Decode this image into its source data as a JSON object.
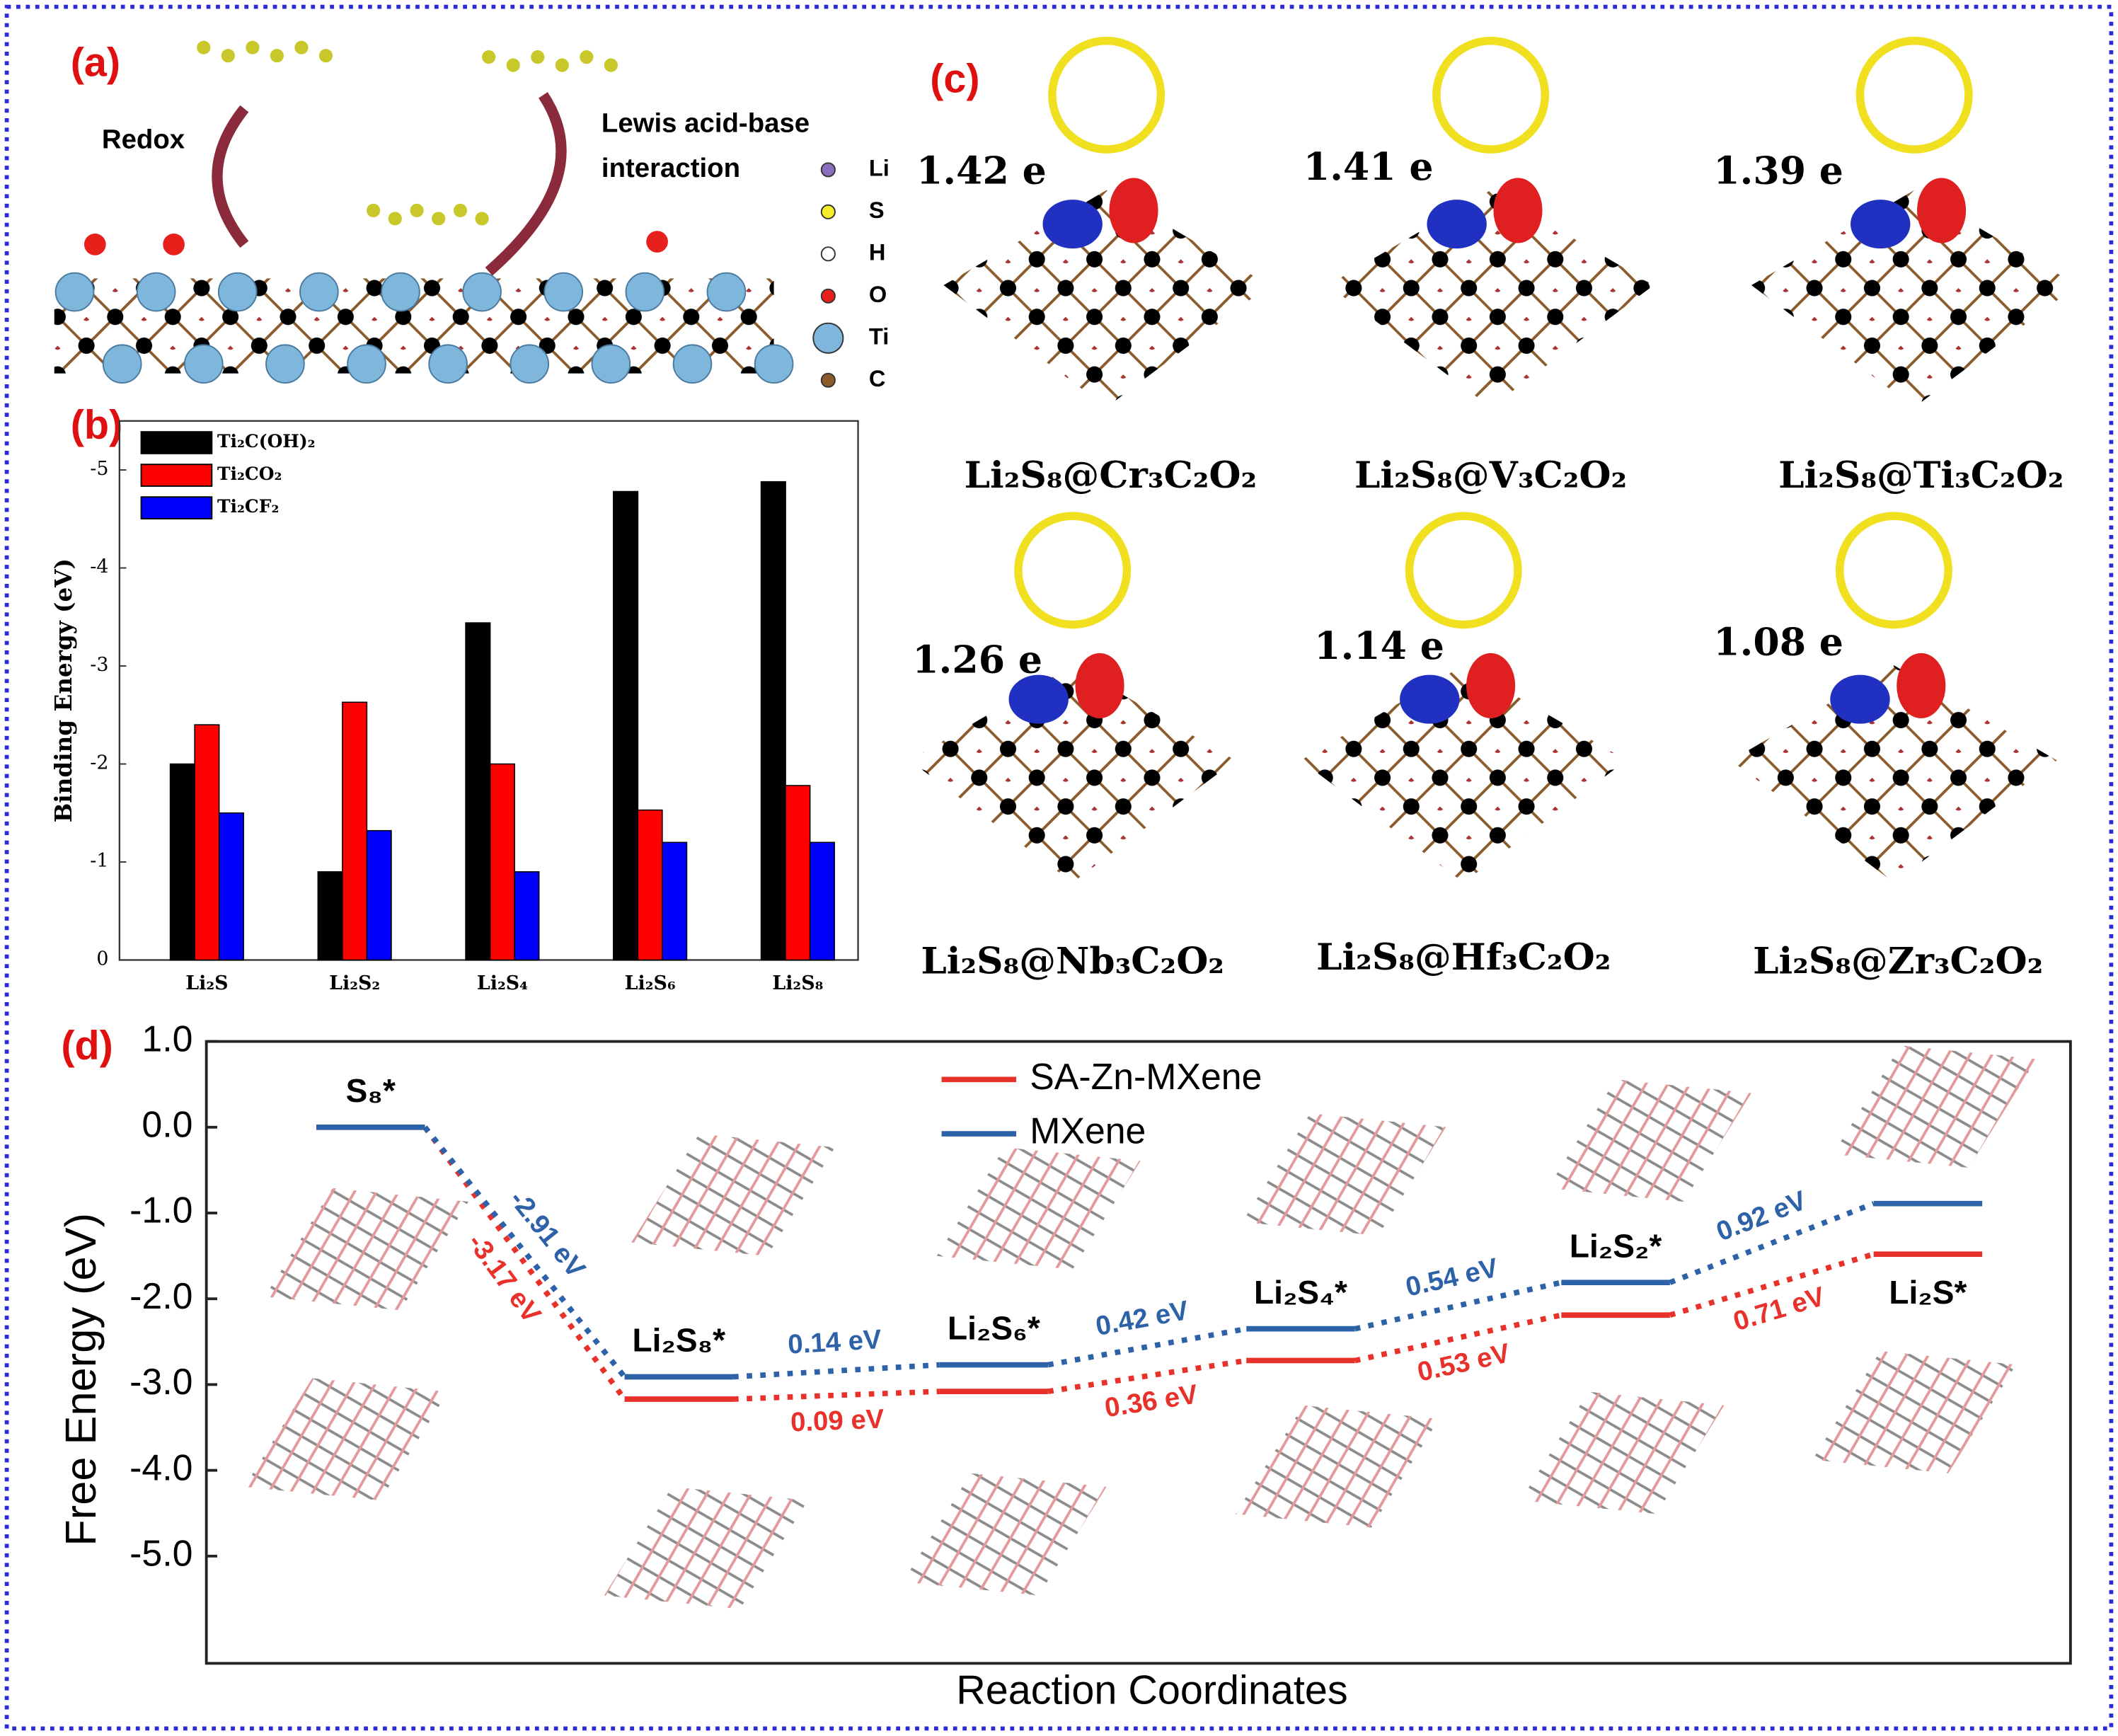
{
  "panel_labels": [
    "(a)",
    "(b)",
    "(c)",
    "(d)"
  ],
  "panel_a": {
    "annotations": [
      "Redox",
      "Lewis acid-base",
      "interaction"
    ],
    "legend": [
      {
        "name": "Li",
        "color": "#8a6fc0"
      },
      {
        "name": "S",
        "color": "#f2ee2a"
      },
      {
        "name": "H",
        "color": "#ffffff"
      },
      {
        "name": "O",
        "color": "#e8201c"
      },
      {
        "name": "Ti",
        "color": "#7fb6dc"
      },
      {
        "name": "C",
        "color": "#8b5a2b"
      }
    ]
  },
  "panel_c": {
    "charges": [
      "1.42 e",
      "1.41 e",
      "1.39 e",
      "1.26 e",
      "1.14 e",
      "1.08 e"
    ],
    "labels": [
      "Li₂S₈@Cr₃C₂O₂",
      "Li₂S₈@V₃C₂O₂",
      "Li₂S₈@Ti₃C₂O₂",
      "Li₂S₈@Nb₃C₂O₂",
      "Li₂S₈@Hf₃C₂O₂",
      "Li₂S₈@Zr₃C₂O₂"
    ]
  },
  "chart_data": [
    {
      "type": "bar",
      "ylabel": "Binding Energy (eV)",
      "categories": [
        "Li₂S",
        "Li₂S₂",
        "Li₂S₄",
        "Li₂S₆",
        "Li₂S₈"
      ],
      "series": [
        {
          "name": "Ti₂C(OH)₂",
          "color": "#000000",
          "values": [
            -2.0,
            -0.9,
            -3.44,
            -4.78,
            -4.88
          ]
        },
        {
          "name": "Ti₂CO₂",
          "color": "#ff0000",
          "values": [
            -2.4,
            -2.63,
            -2.0,
            -1.53,
            -1.78
          ]
        },
        {
          "name": "Ti₂CF₂",
          "color": "#0000ff",
          "values": [
            -1.5,
            -1.32,
            -0.9,
            -1.2,
            -1.2
          ]
        }
      ],
      "ylim": [
        0,
        -5.5
      ],
      "yticks": [
        0,
        -1,
        -2,
        -3,
        -4,
        -5
      ],
      "legend": "upper left"
    },
    {
      "type": "energy",
      "ylabel": "Free Energy (eV)",
      "xlabel": "Reaction Coordinates",
      "categories": [
        "S₈*",
        "Li₂S₈*",
        "Li₂S₆*",
        "Li₂S₄*",
        "Li₂S₂*",
        "Li₂S*"
      ],
      "series": [
        {
          "name": "SA-Zn-MXene",
          "color": "#e8312a",
          "values": [
            0,
            -3.17,
            -3.08,
            -2.72,
            -2.19,
            -1.48
          ],
          "step_labels": [
            "-3.17 eV",
            "0.09 eV",
            "0.36 eV",
            "0.53 eV",
            "0.71 eV"
          ]
        },
        {
          "name": "MXene",
          "color": "#2e62a8",
          "values": [
            0,
            -2.91,
            -2.77,
            -2.35,
            -1.81,
            -0.89
          ],
          "step_labels": [
            "-2.91 eV",
            "0.14 eV",
            "0.42 eV",
            "0.54 eV",
            "0.92 eV"
          ]
        }
      ],
      "ylim": [
        -6.25,
        1.0
      ],
      "yticks": [
        {
          "value": 1.0,
          "label": "1.0"
        },
        {
          "value": 0.0,
          "label": "0.0"
        },
        {
          "value": -1.0,
          "label": "-1.0"
        },
        {
          "value": -2.0,
          "label": "-2.0"
        },
        {
          "value": -3.0,
          "label": "-3.0"
        },
        {
          "value": -4.0,
          "label": "-4.0"
        },
        {
          "value": -5.0,
          "label": "-5.0"
        }
      ],
      "legend": "upper center"
    }
  ]
}
